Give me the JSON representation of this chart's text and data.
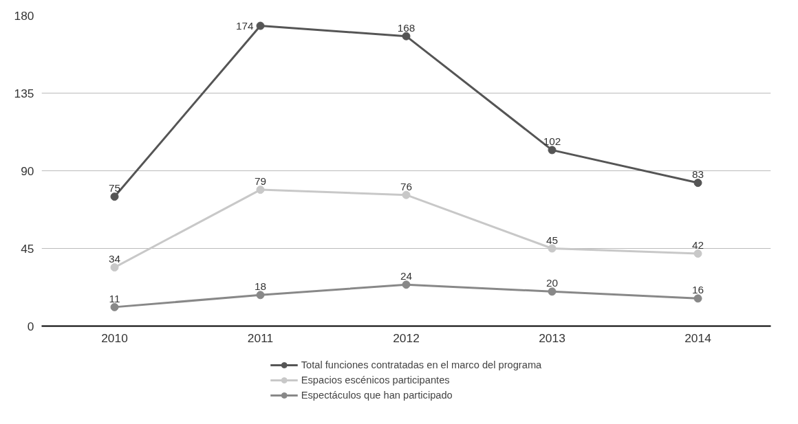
{
  "chart_data": {
    "type": "line",
    "categories": [
      "2010",
      "2011",
      "2012",
      "2013",
      "2014"
    ],
    "series": [
      {
        "name": "Total funciones contratadas en el marco del programa",
        "color": "#555555",
        "values": [
          75,
          174,
          168,
          102,
          83
        ]
      },
      {
        "name": "Espacios escénicos participantes",
        "color": "#c8c8c8",
        "values": [
          34,
          79,
          76,
          45,
          42
        ]
      },
      {
        "name": "Espectáculos que han participado",
        "color": "#888888",
        "values": [
          11,
          18,
          24,
          20,
          16
        ]
      }
    ],
    "ylim": [
      0,
      180
    ],
    "yticks": [
      0,
      45,
      90,
      135,
      180
    ],
    "grid": "y",
    "legend": "bottom",
    "marker": "circle",
    "line_style": "solid",
    "data_labels": true
  }
}
